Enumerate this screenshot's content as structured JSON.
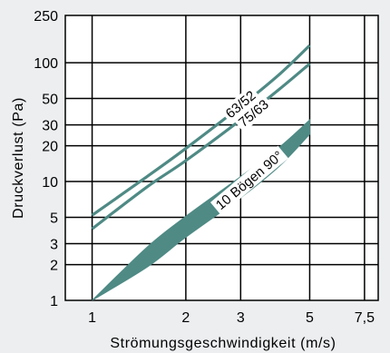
{
  "chart_data": {
    "type": "line",
    "xlabel": "Strömungsgeschwindigkeit  (m/s)",
    "ylabel": "Druckverlust  (Pa)",
    "x_scale": "log",
    "y_scale": "log",
    "xlim": [
      0.82,
      8.3
    ],
    "ylim": [
      1,
      250
    ],
    "xticks": [
      1,
      2,
      3,
      5,
      7.5
    ],
    "xtick_labels": [
      "1",
      "2",
      "3",
      "5",
      "7,5"
    ],
    "yticks": [
      1,
      2,
      3,
      5,
      10,
      20,
      30,
      50,
      100,
      250
    ],
    "ytick_labels": [
      "1",
      "2",
      "3",
      "5",
      "10",
      "20",
      "30",
      "50",
      "100",
      "250"
    ],
    "grid": true,
    "series_color": "#4f8a85",
    "series": [
      {
        "name": "63/52",
        "kind": "line",
        "x": [
          1,
          1.5,
          2,
          3,
          4,
          5
        ],
        "y": [
          5.2,
          11,
          19,
          43,
          80,
          140
        ]
      },
      {
        "name": "75/63",
        "kind": "line",
        "x": [
          1,
          1.5,
          2,
          3,
          4,
          5
        ],
        "y": [
          4,
          9,
          15,
          33,
          60,
          98
        ]
      },
      {
        "name": "10 Bögen 90°",
        "kind": "band",
        "x": [
          1,
          1.5,
          2,
          3,
          4,
          5
        ],
        "y_lower": [
          1,
          1.9,
          3.4,
          7.3,
          13.5,
          25
        ],
        "y_upper": [
          1,
          2.8,
          5.1,
          11,
          19.5,
          33
        ]
      }
    ]
  }
}
